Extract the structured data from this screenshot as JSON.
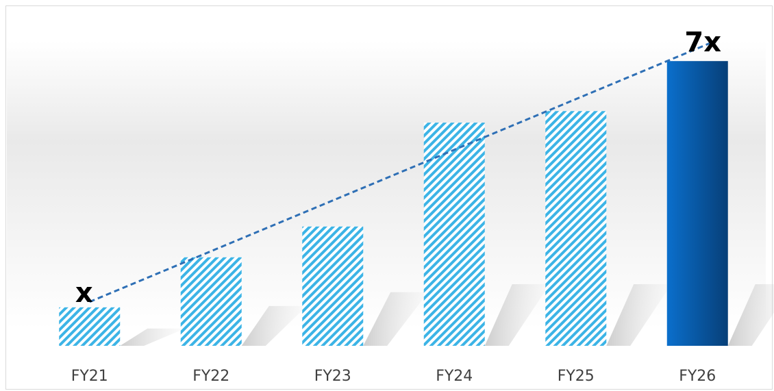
{
  "chart_data": {
    "type": "bar",
    "title": "",
    "xlabel": "",
    "ylabel": "",
    "categories": [
      "FY21",
      "FY22",
      "FY23",
      "FY24",
      "FY25",
      "FY26"
    ],
    "values": [
      1,
      2.3,
      3.1,
      5.8,
      6.1,
      7.4
    ],
    "ylim": [
      0,
      8.4
    ],
    "grid": false,
    "legend": "none",
    "trendline": {
      "style": "dashed",
      "from": "FY21",
      "to": "FY26"
    },
    "annotations": [
      {
        "text": "x",
        "category": "FY21"
      },
      {
        "text": "7x",
        "category": "FY26"
      }
    ],
    "colors": {
      "hatch_light": "#5bc0eb",
      "hatch_dark": "#1f9fd4",
      "highlight_top": "#0a5aa0",
      "highlight_bottom": "#0b6cc4",
      "trendline": "#2e6fb5",
      "tick_text": "#404040"
    }
  }
}
